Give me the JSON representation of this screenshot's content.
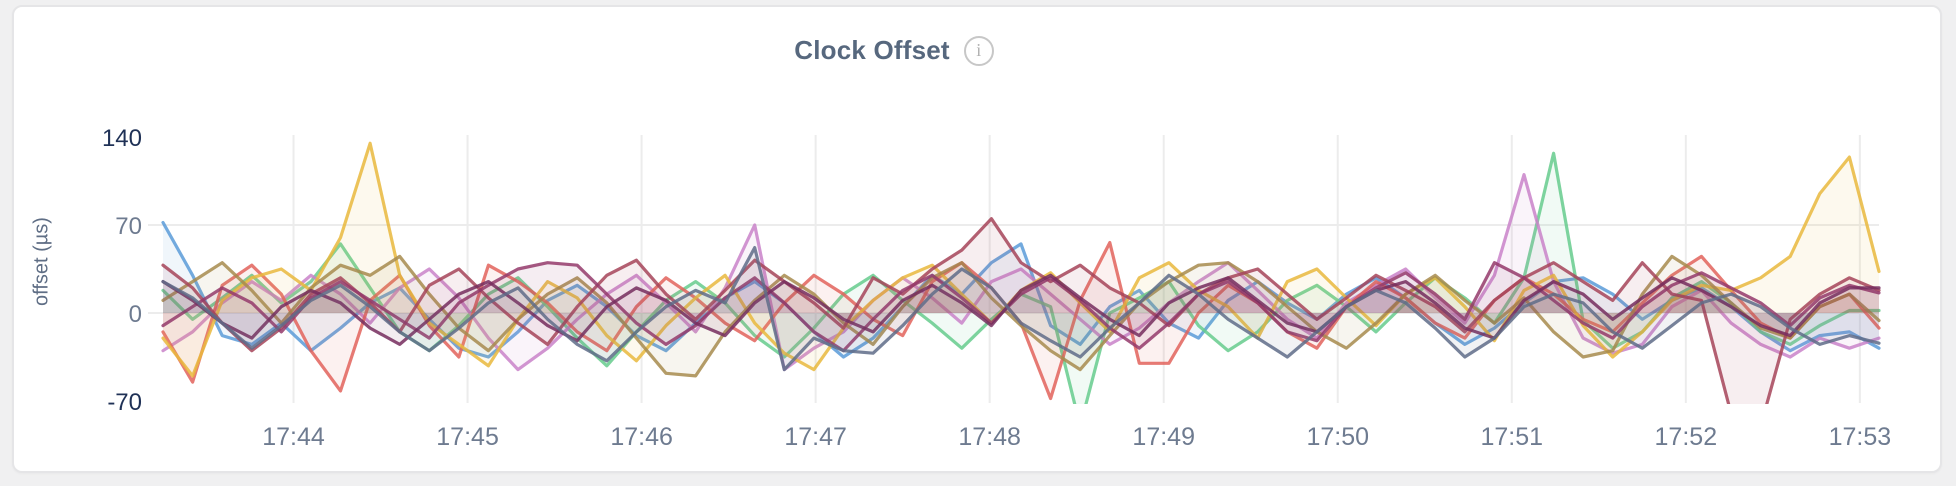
{
  "page": {
    "background": "#f0f0f1",
    "card_background": "#ffffff",
    "card_border": "#e5e5e7"
  },
  "header": {
    "title": "Clock Offset",
    "info_icon_glyph": "i"
  },
  "chart_data": {
    "type": "line",
    "title": "Clock Offset",
    "xlabel": "",
    "ylabel": "offset (µs)",
    "ylim": [
      -70,
      140
    ],
    "xlim_minutes": [
      43.25,
      53.11
    ],
    "t_start_minute": 43.25,
    "t_step_minute": 0.17,
    "grid": true,
    "legend": "none",
    "grid_color": "#ececec",
    "axis_label_color_muted": "#6e7b90",
    "axis_label_color_strong": "#1f3156",
    "line_width": 3.2,
    "line_opacity": 0.85,
    "fill_opacity": 0.09,
    "y_ticks": [
      {
        "value": 140,
        "label": "140",
        "strong": true
      },
      {
        "value": 70,
        "label": "70",
        "strong": false
      },
      {
        "value": 0,
        "label": "0",
        "strong": false
      },
      {
        "value": -70,
        "label": "-70",
        "strong": true
      }
    ],
    "y_gridlines": [
      70,
      0
    ],
    "x_ticks": [
      {
        "minute": 44,
        "label": "17:44"
      },
      {
        "minute": 45,
        "label": "17:45"
      },
      {
        "minute": 46,
        "label": "17:46"
      },
      {
        "minute": 47,
        "label": "17:47"
      },
      {
        "minute": 48,
        "label": "17:48"
      },
      {
        "minute": 49,
        "label": "17:49"
      },
      {
        "minute": 50,
        "label": "17:50"
      },
      {
        "minute": 51,
        "label": "17:51"
      },
      {
        "minute": 52,
        "label": "17:52"
      },
      {
        "minute": 53,
        "label": "17:53"
      }
    ],
    "series": [
      {
        "name": "blue",
        "color": "#5b9bd8",
        "values": [
          72,
          30,
          -18,
          -25,
          -8,
          -30,
          -12,
          8,
          20,
          -5,
          -28,
          -35,
          -15,
          10,
          22,
          5,
          -18,
          -30,
          -8,
          12,
          25,
          8,
          -15,
          -35,
          -20,
          5,
          30,
          15,
          40,
          55,
          -10,
          -25,
          5,
          18,
          -8,
          -20,
          10,
          25,
          8,
          -5,
          15,
          28,
          12,
          -8,
          -25,
          -12,
          8,
          25,
          28,
          15,
          -5,
          10,
          20,
          5,
          -15,
          -30,
          -18,
          -15,
          -28
        ]
      },
      {
        "name": "green",
        "color": "#66cb8d",
        "values": [
          18,
          -5,
          12,
          30,
          8,
          25,
          55,
          20,
          -15,
          -30,
          -10,
          15,
          28,
          5,
          -20,
          -42,
          -15,
          10,
          25,
          8,
          -18,
          -35,
          -12,
          15,
          30,
          10,
          -8,
          -28,
          -5,
          15,
          5,
          -90,
          0,
          12,
          25,
          -10,
          -30,
          -15,
          10,
          22,
          5,
          -15,
          8,
          28,
          12,
          -8,
          28,
          127,
          -6,
          -28,
          -15,
          12,
          25,
          8,
          -15,
          -25,
          -10,
          2,
          2
        ]
      },
      {
        "name": "orchid",
        "color": "#c983c9",
        "values": [
          -30,
          -15,
          8,
          25,
          10,
          30,
          15,
          -8,
          20,
          35,
          12,
          -20,
          -45,
          -28,
          -5,
          15,
          30,
          8,
          -15,
          20,
          70,
          -45,
          -28,
          -15,
          10,
          28,
          12,
          -8,
          25,
          35,
          15,
          -5,
          -25,
          -12,
          8,
          25,
          40,
          18,
          -5,
          -20,
          8,
          22,
          35,
          12,
          -8,
          30,
          110,
          25,
          -20,
          -32,
          -25,
          5,
          18,
          -8,
          -25,
          -35,
          -20,
          -28,
          -20
        ]
      },
      {
        "name": "red",
        "color": "#e2635c",
        "values": [
          -15,
          -55,
          22,
          38,
          15,
          -30,
          -62,
          10,
          30,
          -10,
          -35,
          38,
          25,
          8,
          -15,
          -30,
          5,
          28,
          12,
          -8,
          -22,
          8,
          30,
          15,
          -5,
          -18,
          25,
          40,
          20,
          -8,
          -68,
          10,
          56,
          -40,
          -40,
          0,
          22,
          8,
          -15,
          -28,
          5,
          25,
          12,
          -8,
          -20,
          10,
          28,
          15,
          -5,
          -15,
          8,
          30,
          45,
          18,
          -8,
          -20,
          5,
          15,
          -12
        ]
      },
      {
        "name": "yellow",
        "color": "#e9b83d",
        "values": [
          -20,
          -50,
          10,
          28,
          35,
          18,
          60,
          135,
          30,
          -8,
          -25,
          -42,
          -5,
          25,
          12,
          -18,
          -38,
          -10,
          12,
          30,
          -8,
          -32,
          -45,
          -12,
          10,
          28,
          38,
          15,
          -8,
          18,
          32,
          8,
          -15,
          28,
          40,
          18,
          5,
          -20,
          25,
          35,
          12,
          -10,
          15,
          28,
          5,
          -22,
          18,
          30,
          -10,
          -35,
          -15,
          10,
          22,
          18,
          28,
          45,
          95,
          124,
          33
        ]
      },
      {
        "name": "khaki",
        "color": "#a78b4e",
        "values": [
          10,
          25,
          40,
          18,
          -8,
          20,
          38,
          30,
          45,
          15,
          -12,
          -30,
          -5,
          15,
          28,
          8,
          -20,
          -48,
          -50,
          -15,
          10,
          30,
          15,
          -8,
          -25,
          5,
          28,
          40,
          12,
          -10,
          -30,
          -45,
          -18,
          8,
          25,
          38,
          40,
          25,
          5,
          -15,
          -28,
          -8,
          15,
          30,
          10,
          -8,
          12,
          -15,
          -35,
          -30,
          15,
          45,
          30,
          8,
          -12,
          -20,
          5,
          15,
          -6
        ]
      },
      {
        "name": "crimson",
        "color": "#a64459",
        "values": [
          38,
          20,
          -8,
          -30,
          -12,
          15,
          28,
          8,
          -15,
          22,
          35,
          12,
          -8,
          -25,
          5,
          30,
          42,
          15,
          -5,
          18,
          42,
          25,
          8,
          -12,
          28,
          15,
          35,
          50,
          75,
          40,
          25,
          38,
          20,
          8,
          -10,
          15,
          28,
          35,
          15,
          -5,
          12,
          30,
          18,
          5,
          -15,
          10,
          28,
          40,
          25,
          10,
          40,
          15,
          10,
          -80,
          -90,
          -5,
          15,
          28,
          18
        ]
      },
      {
        "name": "plum",
        "color": "#94396b",
        "values": [
          -10,
          5,
          20,
          8,
          -15,
          12,
          25,
          10,
          -5,
          -20,
          8,
          22,
          35,
          40,
          38,
          15,
          -8,
          -25,
          -10,
          12,
          28,
          8,
          -15,
          -30,
          -5,
          18,
          30,
          12,
          -8,
          15,
          28,
          10,
          -12,
          -28,
          -8,
          15,
          25,
          8,
          -15,
          -22,
          5,
          20,
          32,
          15,
          -5,
          40,
          28,
          10,
          -8,
          -20,
          5,
          22,
          32,
          20,
          8,
          -10,
          12,
          22,
          16
        ]
      },
      {
        "name": "dark-magenta",
        "color": "#762d5e",
        "values": [
          25,
          10,
          -8,
          -20,
          5,
          18,
          8,
          -12,
          -25,
          -5,
          15,
          25,
          8,
          -10,
          -22,
          5,
          20,
          10,
          -8,
          -18,
          8,
          25,
          12,
          -5,
          -15,
          10,
          22,
          8,
          -10,
          18,
          30,
          12,
          -5,
          -18,
          8,
          20,
          28,
          10,
          -8,
          -15,
          5,
          18,
          25,
          8,
          -12,
          -20,
          10,
          25,
          15,
          -5,
          12,
          28,
          18,
          5,
          -10,
          -18,
          8,
          20,
          20
        ]
      },
      {
        "name": "slate",
        "color": "#5f6c88",
        "values": [
          25,
          12,
          -8,
          -28,
          -10,
          10,
          22,
          5,
          -15,
          -30,
          -12,
          8,
          20,
          -5,
          -25,
          -38,
          -15,
          5,
          18,
          8,
          52,
          -45,
          -20,
          -30,
          -32,
          -10,
          15,
          35,
          20,
          -8,
          -22,
          -35,
          -12,
          8,
          30,
          15,
          -5,
          -20,
          -35,
          -15,
          5,
          18,
          8,
          -12,
          -35,
          -20,
          5,
          15,
          8,
          -15,
          -28,
          -10,
          8,
          15,
          5,
          -12,
          -25,
          -18,
          -24
        ]
      }
    ]
  }
}
